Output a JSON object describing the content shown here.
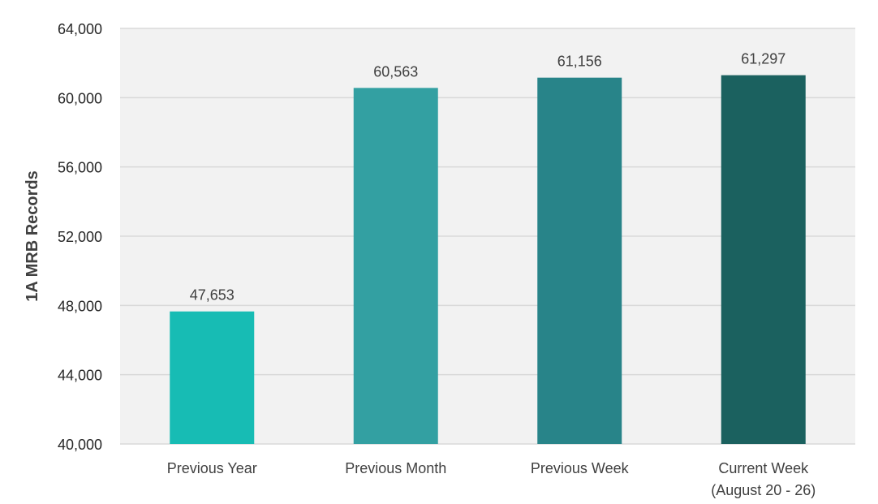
{
  "chart_data": {
    "type": "bar",
    "title": "",
    "xlabel": "",
    "ylabel": "1A MRB Records",
    "categories": [
      [
        "Previous Year"
      ],
      [
        "Previous Month"
      ],
      [
        "Previous Week"
      ],
      [
        "Current Week",
        "(August 20 - 26)"
      ]
    ],
    "values": [
      47653,
      60563,
      61156,
      61297
    ],
    "value_labels": [
      "47,653",
      "60,563",
      "61,156",
      "61,297"
    ],
    "bar_colors": [
      "#17BCB4",
      "#33A0A2",
      "#288489",
      "#1B615F"
    ],
    "ylim": [
      40000,
      64000
    ],
    "yticks": [
      40000,
      44000,
      48000,
      52000,
      56000,
      60000,
      64000
    ],
    "ytick_labels": [
      "40,000",
      "44,000",
      "48,000",
      "52,000",
      "56,000",
      "60,000",
      "64,000"
    ],
    "grid": true,
    "plot_background": "#F2F2F2",
    "grid_color": "#D9D9D9"
  }
}
